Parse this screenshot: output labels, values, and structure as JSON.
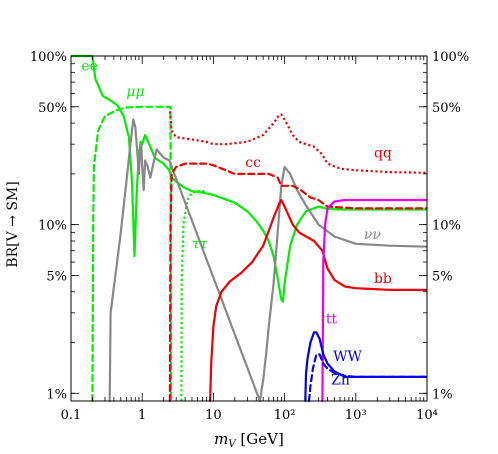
{
  "chart_data": {
    "type": "line",
    "title": "",
    "xlabel": "m_V [GeV]",
    "ylabel": "BR[V → SM]",
    "x_scale": "log",
    "y_scale": "log",
    "xlim": [
      0.1,
      10000
    ],
    "ylim": [
      0.009,
      1.0
    ],
    "x_ticks": [
      {
        "value": 0.1,
        "label": "0.1"
      },
      {
        "value": 1,
        "label": "1"
      },
      {
        "value": 10,
        "label": "10"
      },
      {
        "value": 100,
        "label": "10²"
      },
      {
        "value": 1000,
        "label": "10³"
      },
      {
        "value": 10000,
        "label": "10⁴"
      }
    ],
    "y_ticks": [
      {
        "value": 1.0,
        "label": "100%"
      },
      {
        "value": 0.5,
        "label": "50%"
      },
      {
        "value": 0.1,
        "label": "10%"
      },
      {
        "value": 0.05,
        "label": "5%"
      },
      {
        "value": 0.01,
        "label": "1%"
      }
    ],
    "series": [
      {
        "name": "ee",
        "color": "#00ee00",
        "dash": "solid",
        "points": [
          [
            0.1,
            1.0
          ],
          [
            0.2,
            1.0
          ],
          [
            0.22,
            0.73
          ],
          [
            0.28,
            0.58
          ],
          [
            0.35,
            0.55
          ],
          [
            0.45,
            0.51
          ],
          [
            0.55,
            0.44
          ],
          [
            0.65,
            0.33
          ],
          [
            0.72,
            0.18
          ],
          [
            0.78,
            0.065
          ],
          [
            0.84,
            0.16
          ],
          [
            0.9,
            0.26
          ],
          [
            0.95,
            0.31
          ],
          [
            1.0,
            0.3
          ],
          [
            1.1,
            0.34
          ],
          [
            1.3,
            0.29
          ],
          [
            1.5,
            0.25
          ],
          [
            1.7,
            0.24
          ],
          [
            2.0,
            0.23
          ],
          [
            2.4,
            0.21
          ],
          [
            2.6,
            0.19
          ],
          [
            3.0,
            0.18
          ],
          [
            4.0,
            0.165
          ],
          [
            5.0,
            0.158
          ],
          [
            7.0,
            0.155
          ],
          [
            10.0,
            0.15
          ],
          [
            20.0,
            0.135
          ],
          [
            30.0,
            0.12
          ],
          [
            40.0,
            0.105
          ],
          [
            50.0,
            0.092
          ],
          [
            60.0,
            0.08
          ],
          [
            70.0,
            0.065
          ],
          [
            80.0,
            0.048
          ],
          [
            90.0,
            0.036
          ],
          [
            95.0,
            0.035
          ],
          [
            100.0,
            0.045
          ],
          [
            120.0,
            0.075
          ],
          [
            150.0,
            0.1
          ],
          [
            200.0,
            0.12
          ],
          [
            300.0,
            0.128
          ],
          [
            400.0,
            0.124
          ],
          [
            600.0,
            0.123
          ],
          [
            10000.0,
            0.123
          ]
        ]
      },
      {
        "name": "μμ",
        "color": "#00ee00",
        "dash": "dashed",
        "points": [
          [
            0.2,
            0.009
          ],
          [
            0.205,
            0.1
          ],
          [
            0.21,
            0.22
          ],
          [
            0.24,
            0.36
          ],
          [
            0.3,
            0.44
          ],
          [
            0.45,
            0.48
          ],
          [
            0.6,
            0.495
          ],
          [
            1.0,
            0.5
          ],
          [
            2.5,
            0.5
          ],
          [
            2.55,
            0.009
          ]
        ]
      },
      {
        "name": "ττ",
        "color": "#00ee00",
        "dash": "dotted",
        "points": [
          [
            3.55,
            0.009
          ],
          [
            3.6,
            0.05
          ],
          [
            3.8,
            0.1
          ],
          [
            4.3,
            0.14
          ],
          [
            5.0,
            0.155
          ],
          [
            6.0,
            0.158
          ],
          [
            8.0,
            0.158
          ]
        ]
      },
      {
        "name": "νν",
        "color": "#888888",
        "dash": "solid",
        "points": [
          [
            0.35,
            0.009
          ],
          [
            0.36,
            0.03
          ],
          [
            0.42,
            0.05
          ],
          [
            0.5,
            0.09
          ],
          [
            0.6,
            0.18
          ],
          [
            0.7,
            0.33
          ],
          [
            0.75,
            0.42
          ],
          [
            0.8,
            0.38
          ],
          [
            0.86,
            0.26
          ],
          [
            0.9,
            0.2
          ],
          [
            0.93,
            0.27
          ],
          [
            0.97,
            0.3
          ],
          [
            1.0,
            0.22
          ],
          [
            1.05,
            0.16
          ],
          [
            1.1,
            0.24
          ],
          [
            1.2,
            0.22
          ],
          [
            1.3,
            0.19
          ],
          [
            1.5,
            0.25
          ],
          [
            1.6,
            0.28
          ],
          [
            1.7,
            0.27
          ],
          [
            2.0,
            0.25
          ],
          [
            2.4,
            0.24
          ],
          [
            45.0,
            0.009
          ],
          [
            50.0,
            0.012
          ],
          [
            55.0,
            0.017
          ],
          [
            60.0,
            0.025
          ],
          [
            70.0,
            0.045
          ],
          [
            80.0,
            0.09
          ],
          [
            90.0,
            0.17
          ],
          [
            100.0,
            0.22
          ],
          [
            120.0,
            0.2
          ],
          [
            150.0,
            0.16
          ],
          [
            200.0,
            0.13
          ],
          [
            300.0,
            0.1
          ],
          [
            500.0,
            0.085
          ],
          [
            1000.0,
            0.077
          ],
          [
            3000.0,
            0.075
          ],
          [
            10000.0,
            0.074
          ]
        ]
      },
      {
        "name": "qq",
        "color": "#ee0000",
        "dash": "dotted",
        "points": [
          [
            2.45,
            0.47
          ],
          [
            2.6,
            0.36
          ],
          [
            3.0,
            0.33
          ],
          [
            5.0,
            0.32
          ],
          [
            8.0,
            0.31
          ],
          [
            10.0,
            0.3
          ],
          [
            15.0,
            0.3
          ],
          [
            30.0,
            0.31
          ],
          [
            50.0,
            0.34
          ],
          [
            70.0,
            0.4
          ],
          [
            85.0,
            0.45
          ],
          [
            90.0,
            0.45
          ],
          [
            100.0,
            0.42
          ],
          [
            130.0,
            0.34
          ],
          [
            160.0,
            0.31
          ],
          [
            200.0,
            0.3
          ],
          [
            260.0,
            0.29
          ],
          [
            340.0,
            0.26
          ],
          [
            400.0,
            0.23
          ],
          [
            600.0,
            0.215
          ],
          [
            1000.0,
            0.21
          ],
          [
            3000.0,
            0.205
          ],
          [
            10000.0,
            0.203
          ]
        ]
      },
      {
        "name": "cc",
        "color": "#ee0000",
        "dash": "dashed",
        "points": [
          [
            2.45,
            0.009
          ],
          [
            2.5,
            0.1
          ],
          [
            2.6,
            0.2
          ],
          [
            3.0,
            0.22
          ],
          [
            4.0,
            0.23
          ],
          [
            6.0,
            0.23
          ],
          [
            8.0,
            0.23
          ],
          [
            10.0,
            0.225
          ],
          [
            15.0,
            0.21
          ],
          [
            20.0,
            0.2
          ],
          [
            25.0,
            0.2
          ],
          [
            40.0,
            0.2
          ],
          [
            60.0,
            0.2
          ],
          [
            80.0,
            0.19
          ],
          [
            90.0,
            0.17
          ],
          [
            100.0,
            0.17
          ],
          [
            130.0,
            0.17
          ],
          [
            170.0,
            0.16
          ],
          [
            230.0,
            0.145
          ],
          [
            300.0,
            0.14
          ],
          [
            400.0,
            0.128
          ],
          [
            1000.0,
            0.125
          ],
          [
            10000.0,
            0.125
          ]
        ]
      },
      {
        "name": "bb",
        "color": "#ee0000",
        "dash": "solid",
        "points": [
          [
            9.0,
            0.009
          ],
          [
            9.3,
            0.015
          ],
          [
            10.0,
            0.025
          ],
          [
            11.0,
            0.033
          ],
          [
            13.0,
            0.04
          ],
          [
            17.0,
            0.046
          ],
          [
            25.0,
            0.052
          ],
          [
            35.0,
            0.06
          ],
          [
            50.0,
            0.075
          ],
          [
            70.0,
            0.11
          ],
          [
            85.0,
            0.135
          ],
          [
            90.0,
            0.14
          ],
          [
            100.0,
            0.128
          ],
          [
            130.0,
            0.1
          ],
          [
            160.0,
            0.09
          ],
          [
            200.0,
            0.085
          ],
          [
            260.0,
            0.08
          ],
          [
            340.0,
            0.07
          ],
          [
            400.0,
            0.055
          ],
          [
            500.0,
            0.047
          ],
          [
            700.0,
            0.043
          ],
          [
            1000.0,
            0.042
          ],
          [
            3000.0,
            0.041
          ],
          [
            10000.0,
            0.041
          ]
        ]
      },
      {
        "name": "tt",
        "color": "#ee00ee",
        "dash": "solid",
        "points": [
          [
            340.0,
            0.009
          ],
          [
            350.0,
            0.06
          ],
          [
            370.0,
            0.1
          ],
          [
            400.0,
            0.125
          ],
          [
            500.0,
            0.137
          ],
          [
            700.0,
            0.14
          ],
          [
            1000.0,
            0.14
          ],
          [
            10000.0,
            0.14
          ]
        ]
      },
      {
        "name": "WW",
        "color": "#0000ee",
        "dash": "solid",
        "points": [
          [
            195.0,
            0.009
          ],
          [
            200.0,
            0.013
          ],
          [
            210.0,
            0.016
          ],
          [
            230.0,
            0.02
          ],
          [
            260.0,
            0.023
          ],
          [
            280.0,
            0.023
          ],
          [
            310.0,
            0.021
          ],
          [
            350.0,
            0.017
          ],
          [
            400.0,
            0.015
          ],
          [
            500.0,
            0.0135
          ],
          [
            700.0,
            0.0125
          ],
          [
            1000.0,
            0.0125
          ],
          [
            10000.0,
            0.0125
          ]
        ]
      },
      {
        "name": "Zh",
        "color": "#0000ee",
        "dash": "dashed",
        "points": [
          [
            220.0,
            0.009
          ],
          [
            230.0,
            0.011
          ],
          [
            250.0,
            0.014
          ],
          [
            280.0,
            0.017
          ],
          [
            310.0,
            0.017
          ],
          [
            350.0,
            0.015
          ],
          [
            400.0,
            0.014
          ],
          [
            500.0,
            0.0132
          ],
          [
            700.0,
            0.0127
          ],
          [
            1000.0,
            0.0125
          ],
          [
            10000.0,
            0.0125
          ]
        ]
      }
    ],
    "annotations": [
      {
        "text": "ee",
        "color": "#00ee00",
        "x": 0.14,
        "y": 0.82,
        "italic": false
      },
      {
        "text": "μμ",
        "color": "#00ee00",
        "x": 0.6,
        "y": 0.58,
        "italic": true
      },
      {
        "text": "ττ",
        "color": "#00ee00",
        "x": 5.0,
        "y": 0.072,
        "italic": true
      },
      {
        "text": "νν",
        "color": "#888888",
        "x": 1300.0,
        "y": 0.082,
        "italic": true
      },
      {
        "text": "qq",
        "color": "#ee0000",
        "x": 1800.0,
        "y": 0.25,
        "italic": false
      },
      {
        "text": "cc",
        "color": "#ee0000",
        "x": 28.0,
        "y": 0.22,
        "italic": false
      },
      {
        "text": "bb",
        "color": "#ee0000",
        "x": 1800.0,
        "y": 0.045,
        "italic": false
      },
      {
        "text": "tt",
        "color": "#ee00ee",
        "x": 380.0,
        "y": 0.026,
        "italic": false
      },
      {
        "text": "WW",
        "color": "#0000ee",
        "x": 480.0,
        "y": 0.0155,
        "italic": false
      },
      {
        "text": "Zh",
        "color": "#0000ee",
        "x": 450.0,
        "y": 0.0113,
        "italic": false
      }
    ],
    "grid": false
  }
}
